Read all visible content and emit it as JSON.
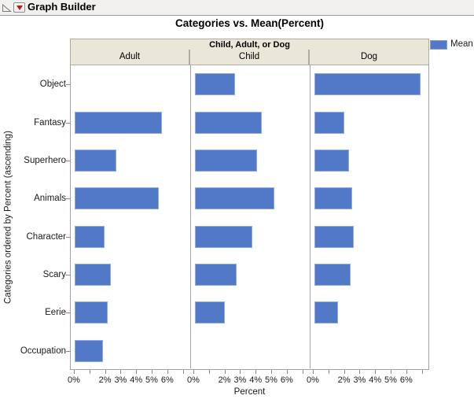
{
  "window": {
    "outline_title": "Graph Builder"
  },
  "chart": {
    "title": "Categories vs. Mean(Percent)",
    "group_header": "Child, Adult, or Dog",
    "y_axis_title": "Categories ordered by Percent (ascending)",
    "x_axis_title": "Percent",
    "legend": {
      "label": "Mean",
      "color": "#5278c8"
    }
  },
  "chart_data": {
    "type": "bar",
    "orientation": "horizontal",
    "title": "Categories vs. Mean(Percent)",
    "group_label": "Child, Adult, or Dog",
    "ylabel": "Categories ordered by Percent (ascending)",
    "xlabel": "Percent",
    "categories": [
      "Object",
      "Fantasy",
      "Superhero",
      "Animals",
      "Character",
      "Scary",
      "Eerie",
      "Occupation"
    ],
    "series": [
      {
        "name": "Adult",
        "values": [
          null,
          5.6,
          2.7,
          5.4,
          1.9,
          2.3,
          2.1,
          1.8
        ]
      },
      {
        "name": "Child",
        "values": [
          2.6,
          4.3,
          4.0,
          5.1,
          3.7,
          2.7,
          1.9,
          null
        ]
      },
      {
        "name": "Dog",
        "values": [
          6.8,
          1.9,
          2.2,
          2.4,
          2.5,
          2.3,
          1.5,
          null
        ]
      }
    ],
    "value_unit": "%",
    "xlim": [
      0,
      7.3
    ],
    "x_ticks": [
      {
        "pct": 0,
        "label": "0%"
      },
      {
        "pct": 1,
        "label": ""
      },
      {
        "pct": 2,
        "label": "2%"
      },
      {
        "pct": 3,
        "label": "3%"
      },
      {
        "pct": 4,
        "label": "4%"
      },
      {
        "pct": 5,
        "label": "5%"
      },
      {
        "pct": 6,
        "label": "6%"
      },
      {
        "pct": 7,
        "label": ""
      }
    ],
    "legend": [
      {
        "label": "Mean",
        "color": "#5278c8"
      }
    ],
    "grid": false,
    "legend_position": "top-right"
  }
}
